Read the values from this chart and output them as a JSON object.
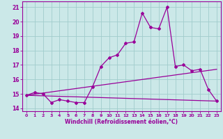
{
  "xlabel": "Windchill (Refroidissement éolien,°C)",
  "bg_color": "#cbe8e8",
  "grid_color": "#a0cccc",
  "line_color": "#990099",
  "xlim": [
    -0.5,
    23.5
  ],
  "ylim": [
    13.8,
    21.4
  ],
  "xticks": [
    0,
    1,
    2,
    3,
    4,
    5,
    6,
    7,
    8,
    9,
    10,
    11,
    12,
    13,
    14,
    15,
    16,
    17,
    18,
    19,
    20,
    21,
    22,
    23
  ],
  "yticks": [
    14,
    15,
    16,
    17,
    18,
    19,
    20,
    21
  ],
  "curve1_x": [
    0,
    1,
    2,
    3,
    4,
    5,
    6,
    7,
    8,
    9,
    10,
    11,
    12,
    13,
    14,
    15,
    16,
    17,
    18,
    19,
    20,
    21,
    22,
    23
  ],
  "curve1_y": [
    14.9,
    15.1,
    15.0,
    14.4,
    14.6,
    14.5,
    14.4,
    14.4,
    15.5,
    16.9,
    17.5,
    17.7,
    18.5,
    18.6,
    20.6,
    19.6,
    19.5,
    21.0,
    16.9,
    17.0,
    16.6,
    16.7,
    15.3,
    14.5
  ],
  "line2_x": [
    0,
    23
  ],
  "line2_y": [
    14.9,
    14.5
  ],
  "line3_x": [
    0,
    23
  ],
  "line3_y": [
    14.9,
    16.7
  ]
}
